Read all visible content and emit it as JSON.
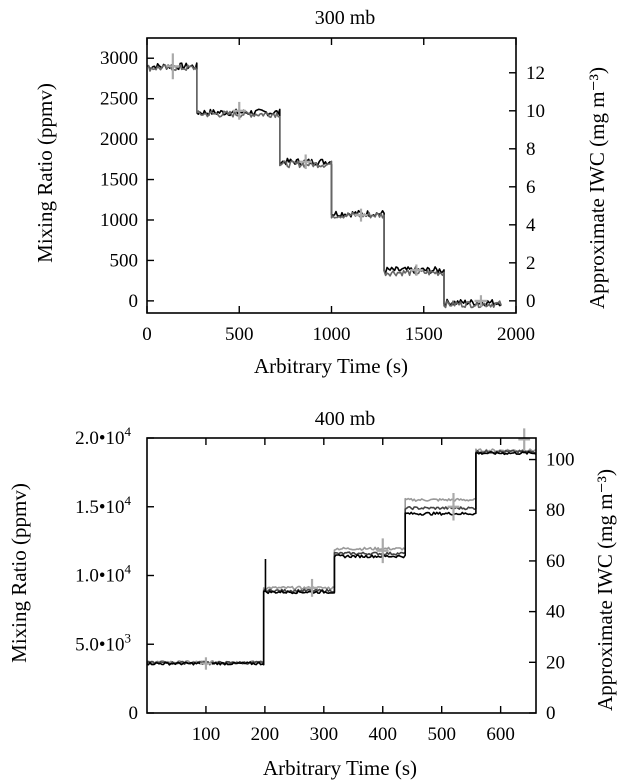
{
  "chart_data": [
    {
      "type": "line",
      "title": "300 mb",
      "xlabel": "Arbitrary Time (s)",
      "ylabel": "Mixing Ratio (ppmv)",
      "y2label": "Approximate IWC (mg m⁻³)",
      "xlim": [
        0,
        2000
      ],
      "ylim": [
        -150,
        3250
      ],
      "y2lim": [
        -0.64,
        13.83
      ],
      "xticks": [
        0,
        500,
        1000,
        1500,
        2000
      ],
      "yticks": [
        0,
        500,
        1000,
        1500,
        2000,
        2500,
        3000
      ],
      "y2ticks": [
        0,
        2,
        4,
        6,
        8,
        10,
        12
      ],
      "grid": false,
      "series": [
        {
          "color": "#000000",
          "steps": [
            {
              "x0": 0,
              "x1": 270,
              "y": 2900
            },
            {
              "x0": 270,
              "x1": 720,
              "y": 2330
            },
            {
              "x0": 720,
              "x1": 1000,
              "y": 1720
            },
            {
              "x0": 1000,
              "x1": 1285,
              "y": 1080
            },
            {
              "x0": 1285,
              "x1": 1610,
              "y": 380
            },
            {
              "x0": 1610,
              "x1": 1920,
              "y": -20
            }
          ]
        },
        {
          "color": "#666666",
          "steps": [
            {
              "x0": 0,
              "x1": 270,
              "y": 2880
            },
            {
              "x0": 270,
              "x1": 720,
              "y": 2310
            },
            {
              "x0": 720,
              "x1": 1000,
              "y": 1690
            },
            {
              "x0": 1000,
              "x1": 1285,
              "y": 1060
            },
            {
              "x0": 1285,
              "x1": 1610,
              "y": 350
            },
            {
              "x0": 1610,
              "x1": 1920,
              "y": -40
            }
          ]
        }
      ],
      "markers": {
        "color": "#aaaaaa",
        "points": [
          {
            "x": 140,
            "y": 2900,
            "xerr": 35,
            "yerr": 160
          },
          {
            "x": 500,
            "y": 2350,
            "xerr": 35,
            "yerr": 110
          },
          {
            "x": 860,
            "y": 1720,
            "xerr": 35,
            "yerr": 90
          },
          {
            "x": 1160,
            "y": 1060,
            "xerr": 35,
            "yerr": 80
          },
          {
            "x": 1460,
            "y": 380,
            "xerr": 35,
            "yerr": 70
          },
          {
            "x": 1810,
            "y": 0,
            "xerr": 35,
            "yerr": 70
          }
        ]
      }
    },
    {
      "type": "line",
      "title": "400 mb",
      "xlabel": "Arbitrary Time (s)",
      "ylabel": "Mixing Ratio (ppmv)",
      "y2label": "Approximate IWC (mg m⁻³)",
      "xlim": [
        0,
        660
      ],
      "ylim": [
        0,
        20000
      ],
      "y2lim": [
        0,
        108.5
      ],
      "xticks": [
        100,
        200,
        300,
        400,
        500,
        600
      ],
      "yticks": [
        {
          "value": 0,
          "base": "0",
          "exp": ""
        },
        {
          "value": 5000,
          "base": "5.0•10",
          "exp": "3"
        },
        {
          "value": 10000,
          "base": "1.0•10",
          "exp": "4"
        },
        {
          "value": 15000,
          "base": "1.5•10",
          "exp": "4"
        },
        {
          "value": 20000,
          "base": "2.0•10",
          "exp": "4"
        }
      ],
      "y2ticks": [
        0,
        20,
        40,
        60,
        80,
        100
      ],
      "grid": false,
      "series": [
        {
          "color": "#999999",
          "steps": [
            {
              "x0": 0,
              "x1": 198,
              "y": 3700
            },
            {
              "x0": 198,
              "x1": 318,
              "y": 9100
            },
            {
              "x0": 318,
              "x1": 438,
              "y": 11950
            },
            {
              "x0": 438,
              "x1": 558,
              "y": 15500
            },
            {
              "x0": 558,
              "x1": 660,
              "y": 19100
            }
          ]
        },
        {
          "color": "#444444",
          "steps": [
            {
              "x0": 0,
              "x1": 198,
              "y": 3650
            },
            {
              "x0": 198,
              "x1": 318,
              "y": 8900
            },
            {
              "x0": 318,
              "x1": 438,
              "y": 11600
            },
            {
              "x0": 438,
              "x1": 558,
              "y": 14900
            },
            {
              "x0": 558,
              "x1": 660,
              "y": 19000
            }
          ]
        },
        {
          "color": "#000000",
          "steps": [
            {
              "x0": 0,
              "x1": 198,
              "y": 3600
            },
            {
              "x0": 198,
              "x1": 318,
              "y": 8800
            },
            {
              "x0": 318,
              "x1": 438,
              "y": 11400
            },
            {
              "x0": 438,
              "x1": 558,
              "y": 14500
            },
            {
              "x0": 558,
              "x1": 660,
              "y": 18900
            }
          ]
        }
      ],
      "spikes": [
        {
          "x": 201,
          "y": 11200
        }
      ],
      "markers": {
        "color": "#aaaaaa",
        "points": [
          {
            "x": 100,
            "y": 3600,
            "xerr": 10,
            "yerr": 450
          },
          {
            "x": 280,
            "y": 9100,
            "xerr": 10,
            "yerr": 650
          },
          {
            "x": 400,
            "y": 11800,
            "xerr": 10,
            "yerr": 900
          },
          {
            "x": 520,
            "y": 15000,
            "xerr": 10,
            "yerr": 1000
          },
          {
            "x": 640,
            "y": 19900,
            "xerr": 10,
            "yerr": 800
          }
        ]
      }
    }
  ]
}
